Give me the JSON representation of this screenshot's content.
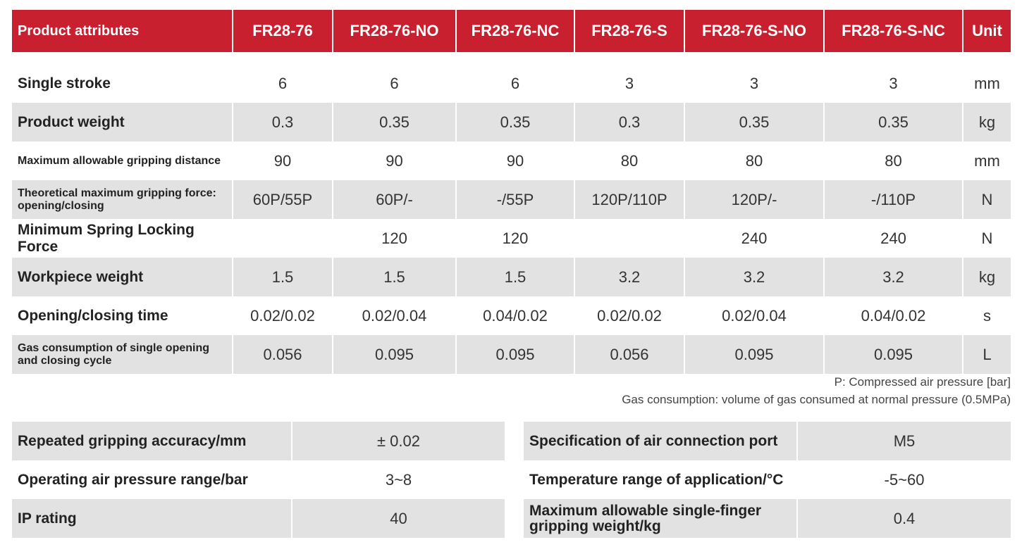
{
  "table": {
    "headers": [
      "Product attributes",
      "FR28-76",
      "FR28-76-NO",
      "FR28-76-NC",
      "FR28-76-S",
      "FR28-76-S-NO",
      "FR28-76-S-NC",
      "Unit"
    ],
    "rows": [
      [
        "Single stroke",
        "6",
        "6",
        "6",
        "3",
        "3",
        "3",
        "mm"
      ],
      [
        "Product weight",
        "0.3",
        "0.35",
        "0.35",
        "0.3",
        "0.35",
        "0.35",
        "kg"
      ],
      [
        "Maximum allowable gripping distance",
        "90",
        "90",
        "90",
        "80",
        "80",
        "80",
        "mm"
      ],
      [
        "Theoretical maximum gripping force: opening/closing",
        "60P/55P",
        "60P/-",
        "-/55P",
        "120P/110P",
        "120P/-",
        "-/110P",
        "N"
      ],
      [
        "Minimum Spring Locking Force",
        "",
        "120",
        "120",
        "",
        "240",
        "240",
        "N"
      ],
      [
        "Workpiece weight",
        "1.5",
        "1.5",
        "1.5",
        "3.2",
        "3.2",
        "3.2",
        "kg"
      ],
      [
        "Opening/closing time",
        "0.02/0.02",
        "0.02/0.04",
        "0.04/0.02",
        "0.02/0.02",
        "0.02/0.04",
        "0.04/0.02",
        "s"
      ],
      [
        "Gas consumption of single opening and closing cycle",
        "0.056",
        "0.095",
        "0.095",
        "0.056",
        "0.095",
        "0.095",
        "L"
      ]
    ]
  },
  "notes": {
    "pressure": "P: Compressed air pressure [bar]",
    "gas": "Gas consumption: volume of gas consumed at normal pressure (0.5MPa)"
  },
  "specs_left": [
    {
      "label": "Repeated gripping accuracy/mm",
      "value": "± 0.02"
    },
    {
      "label": "Operating air pressure range/bar",
      "value": "3~8"
    },
    {
      "label": "IP rating",
      "value": "40"
    }
  ],
  "specs_right": [
    {
      "label": "Specification of air connection port",
      "value": "M5"
    },
    {
      "label": "Temperature range of application/°C",
      "value": "-5~60"
    },
    {
      "label": "Maximum allowable single-finger gripping weight/kg",
      "value": "0.4"
    }
  ],
  "colors": {
    "header": "#c8202f",
    "shade": "#e2e2e2"
  }
}
